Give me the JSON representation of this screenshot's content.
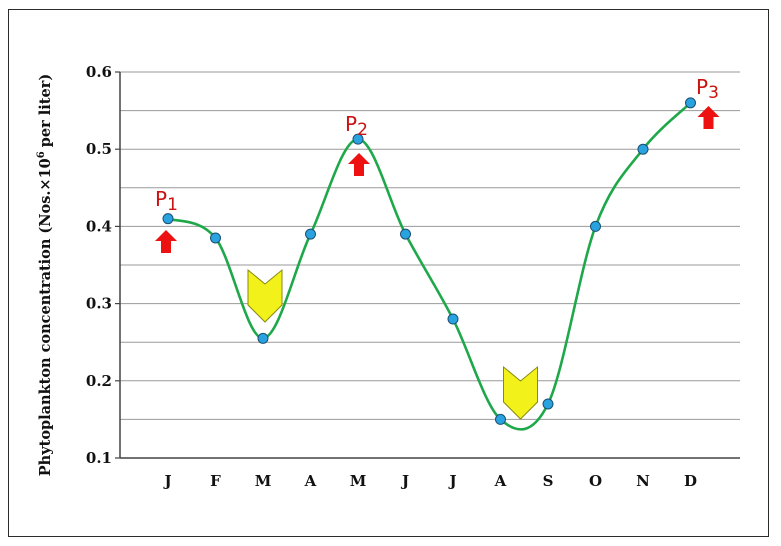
{
  "chart_data": {
    "type": "line",
    "categories": [
      "J",
      "F",
      "M",
      "A",
      "M",
      "J",
      "J",
      "A",
      "S",
      "O",
      "N",
      "D"
    ],
    "series": [
      {
        "values": [
          0.41,
          0.385,
          0.255,
          0.39,
          0.513,
          0.39,
          0.28,
          0.15,
          0.17,
          0.4,
          0.5,
          0.56
        ]
      }
    ],
    "ylabel_main": "Phytoplankton concentration (Nos.×10",
    "ylabel_sup": "6",
    "ylabel_tail": "per liter)",
    "ylim": [
      0.1,
      0.6
    ],
    "yticks": [
      "0.1",
      "0.2",
      "0.3",
      "0.4",
      "0.5",
      "0.6"
    ],
    "grid": true,
    "colors": {
      "line": "#1fa84a",
      "marker": "#29a3e0",
      "up_arrow": "#ee1111",
      "down_arrow": "#f2f21a"
    },
    "annotations": {
      "peaks": [
        {
          "label": "P",
          "sub": "1",
          "month_index": 0,
          "value": 0.41
        },
        {
          "label": "P",
          "sub": "2",
          "month_index": 4,
          "value": 0.513
        },
        {
          "label": "P",
          "sub": "3",
          "month_index": 11,
          "value": 0.56
        }
      ],
      "troughs": [
        {
          "month_index": 2,
          "value": 0.255
        },
        {
          "month_index": 7,
          "value": 0.15
        }
      ]
    }
  }
}
